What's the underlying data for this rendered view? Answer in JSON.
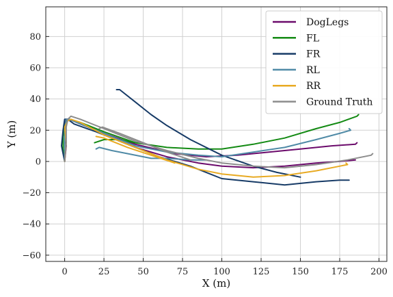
{
  "chart_data": {
    "type": "line",
    "title": "",
    "xlabel": "X (m)",
    "ylabel": "Y (m)",
    "xlim": [
      -12,
      205
    ],
    "ylim": [
      -64,
      99
    ],
    "xticks": [
      0,
      25,
      50,
      75,
      100,
      125,
      150,
      175,
      200
    ],
    "yticks": [
      -60,
      -40,
      -20,
      0,
      20,
      40,
      60,
      80
    ],
    "xtick_labels": [
      "0",
      "25",
      "50",
      "75",
      "100",
      "125",
      "150",
      "175",
      "200"
    ],
    "ytick_labels": [
      "−60",
      "−40",
      "−20",
      "0",
      "20",
      "40",
      "60",
      "80"
    ],
    "grid": true,
    "legend_position": "top-right",
    "series": [
      {
        "name": "DogLegs",
        "color": "#6b0a6b",
        "paths": [
          [
            [
              0,
              0
            ],
            [
              1,
              10
            ],
            [
              0,
              18
            ],
            [
              0,
              24
            ],
            [
              1,
              27
            ],
            [
              3,
              27
            ],
            [
              10,
              24
            ],
            [
              25,
              18
            ],
            [
              45,
              11
            ],
            [
              70,
              5
            ],
            [
              90,
              3
            ],
            [
              110,
              4
            ],
            [
              130,
              6
            ],
            [
              150,
              8
            ],
            [
              170,
              10
            ],
            [
              185,
              11
            ],
            [
              186,
              12
            ]
          ],
          [
            [
              25,
              17
            ],
            [
              45,
              9
            ],
            [
              65,
              3
            ],
            [
              85,
              -1
            ],
            [
              100,
              -3
            ],
            [
              120,
              -4
            ],
            [
              140,
              -3
            ],
            [
              160,
              -1
            ],
            [
              175,
              0
            ],
            [
              185,
              1
            ]
          ]
        ]
      },
      {
        "name": "FL",
        "color": "#138a13",
        "paths": [
          [
            [
              0,
              0
            ],
            [
              -1,
              8
            ],
            [
              -1,
              16
            ],
            [
              0,
              22
            ],
            [
              1,
              26
            ],
            [
              3,
              27
            ],
            [
              10,
              25
            ],
            [
              25,
              19
            ],
            [
              45,
              12
            ],
            [
              65,
              9
            ],
            [
              85,
              8
            ],
            [
              100,
              8
            ],
            [
              120,
              11
            ],
            [
              140,
              15
            ],
            [
              160,
              21
            ],
            [
              175,
              25
            ],
            [
              186,
              29
            ],
            [
              187,
              30
            ]
          ],
          [
            [
              19,
              12
            ],
            [
              25,
              14
            ],
            [
              35,
              14
            ],
            [
              45,
              12
            ]
          ]
        ]
      },
      {
        "name": "FR",
        "color": "#163a66",
        "paths": [
          [
            [
              0,
              0
            ],
            [
              -2,
              10
            ],
            [
              -1,
              20
            ],
            [
              0,
              27
            ],
            [
              2,
              27
            ],
            [
              6,
              24
            ],
            [
              20,
              19
            ],
            [
              40,
              11
            ],
            [
              60,
              3
            ],
            [
              80,
              -3
            ],
            [
              100,
              -11
            ],
            [
              120,
              -13
            ],
            [
              140,
              -15
            ],
            [
              160,
              -13
            ],
            [
              175,
              -12
            ],
            [
              181,
              -12
            ]
          ],
          [
            [
              33,
              46
            ],
            [
              35,
              46
            ],
            [
              45,
              38
            ],
            [
              55,
              30
            ],
            [
              65,
              23
            ],
            [
              80,
              14
            ],
            [
              100,
              4
            ],
            [
              120,
              -3
            ],
            [
              135,
              -7
            ],
            [
              150,
              -10
            ]
          ]
        ]
      },
      {
        "name": "RL",
        "color": "#4f8aa6",
        "paths": [
          [
            [
              0,
              0
            ],
            [
              0,
              10
            ],
            [
              0,
              20
            ],
            [
              1,
              27
            ],
            [
              3,
              27
            ],
            [
              10,
              24
            ],
            [
              25,
              18
            ],
            [
              45,
              10
            ],
            [
              65,
              6
            ],
            [
              85,
              4
            ],
            [
              100,
              3
            ],
            [
              120,
              6
            ],
            [
              140,
              9
            ],
            [
              160,
              14
            ],
            [
              175,
              18
            ],
            [
              182,
              20
            ],
            [
              181,
              21
            ]
          ],
          [
            [
              20,
              8
            ],
            [
              22,
              9
            ],
            [
              30,
              7
            ],
            [
              40,
              5
            ],
            [
              55,
              2
            ],
            [
              65,
              2
            ],
            [
              80,
              1
            ],
            [
              90,
              1
            ]
          ]
        ]
      },
      {
        "name": "RR",
        "color": "#e8aa22",
        "paths": [
          [
            [
              0,
              0
            ],
            [
              1,
              12
            ],
            [
              0,
              22
            ],
            [
              2,
              26
            ],
            [
              4,
              27
            ],
            [
              10,
              25
            ],
            [
              25,
              17
            ],
            [
              45,
              9
            ],
            [
              65,
              1
            ],
            [
              85,
              -5
            ],
            [
              100,
              -8
            ],
            [
              120,
              -10
            ],
            [
              140,
              -9
            ],
            [
              160,
              -6
            ],
            [
              175,
              -3
            ],
            [
              180,
              -2
            ],
            [
              179,
              -1
            ]
          ],
          [
            [
              20,
              16
            ],
            [
              25,
              15
            ],
            [
              40,
              9
            ],
            [
              55,
              4
            ],
            [
              70,
              -1
            ]
          ]
        ]
      },
      {
        "name": "Ground Truth",
        "color": "#8c8c8c",
        "paths": [
          [
            [
              0,
              0
            ],
            [
              1,
              12
            ],
            [
              1,
              22
            ],
            [
              2,
              27
            ],
            [
              4,
              29
            ],
            [
              10,
              27
            ],
            [
              25,
              21
            ],
            [
              45,
              13
            ],
            [
              65,
              7
            ],
            [
              85,
              2
            ],
            [
              100,
              -1
            ],
            [
              120,
              -3
            ],
            [
              140,
              -4
            ],
            [
              160,
              -2
            ],
            [
              180,
              1
            ],
            [
              195,
              4
            ],
            [
              196,
              5
            ]
          ],
          [
            [
              22,
              21
            ],
            [
              24,
              22
            ],
            [
              35,
              18
            ],
            [
              50,
              12
            ],
            [
              65,
              6
            ],
            [
              80,
              1
            ]
          ]
        ]
      }
    ]
  }
}
